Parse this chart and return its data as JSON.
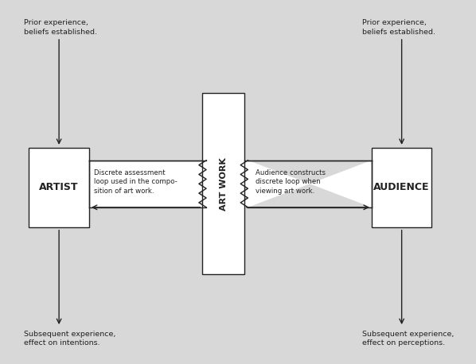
{
  "bg_color": "#d8d8d8",
  "box_color": "#ffffff",
  "box_edge_color": "#222222",
  "text_color": "#222222",
  "artist_label": "ARTIST",
  "artwork_label": "ART WORK",
  "audience_label": "AUDIENCE",
  "left_note_top": "Prior experience,\nbeliefs established.",
  "right_note_top": "Prior experience,\nbeliefs established.",
  "left_note_bottom": "Subsequent experience,\neffect on intentions.",
  "right_note_bottom": "Subsequent experience,\neffect on perceptions.",
  "left_desc": "Discrete assessment\nloop used in the compo-\nsition of art work.",
  "right_desc": "Audience constructs\ndiscrete loop when\nviewing art work."
}
